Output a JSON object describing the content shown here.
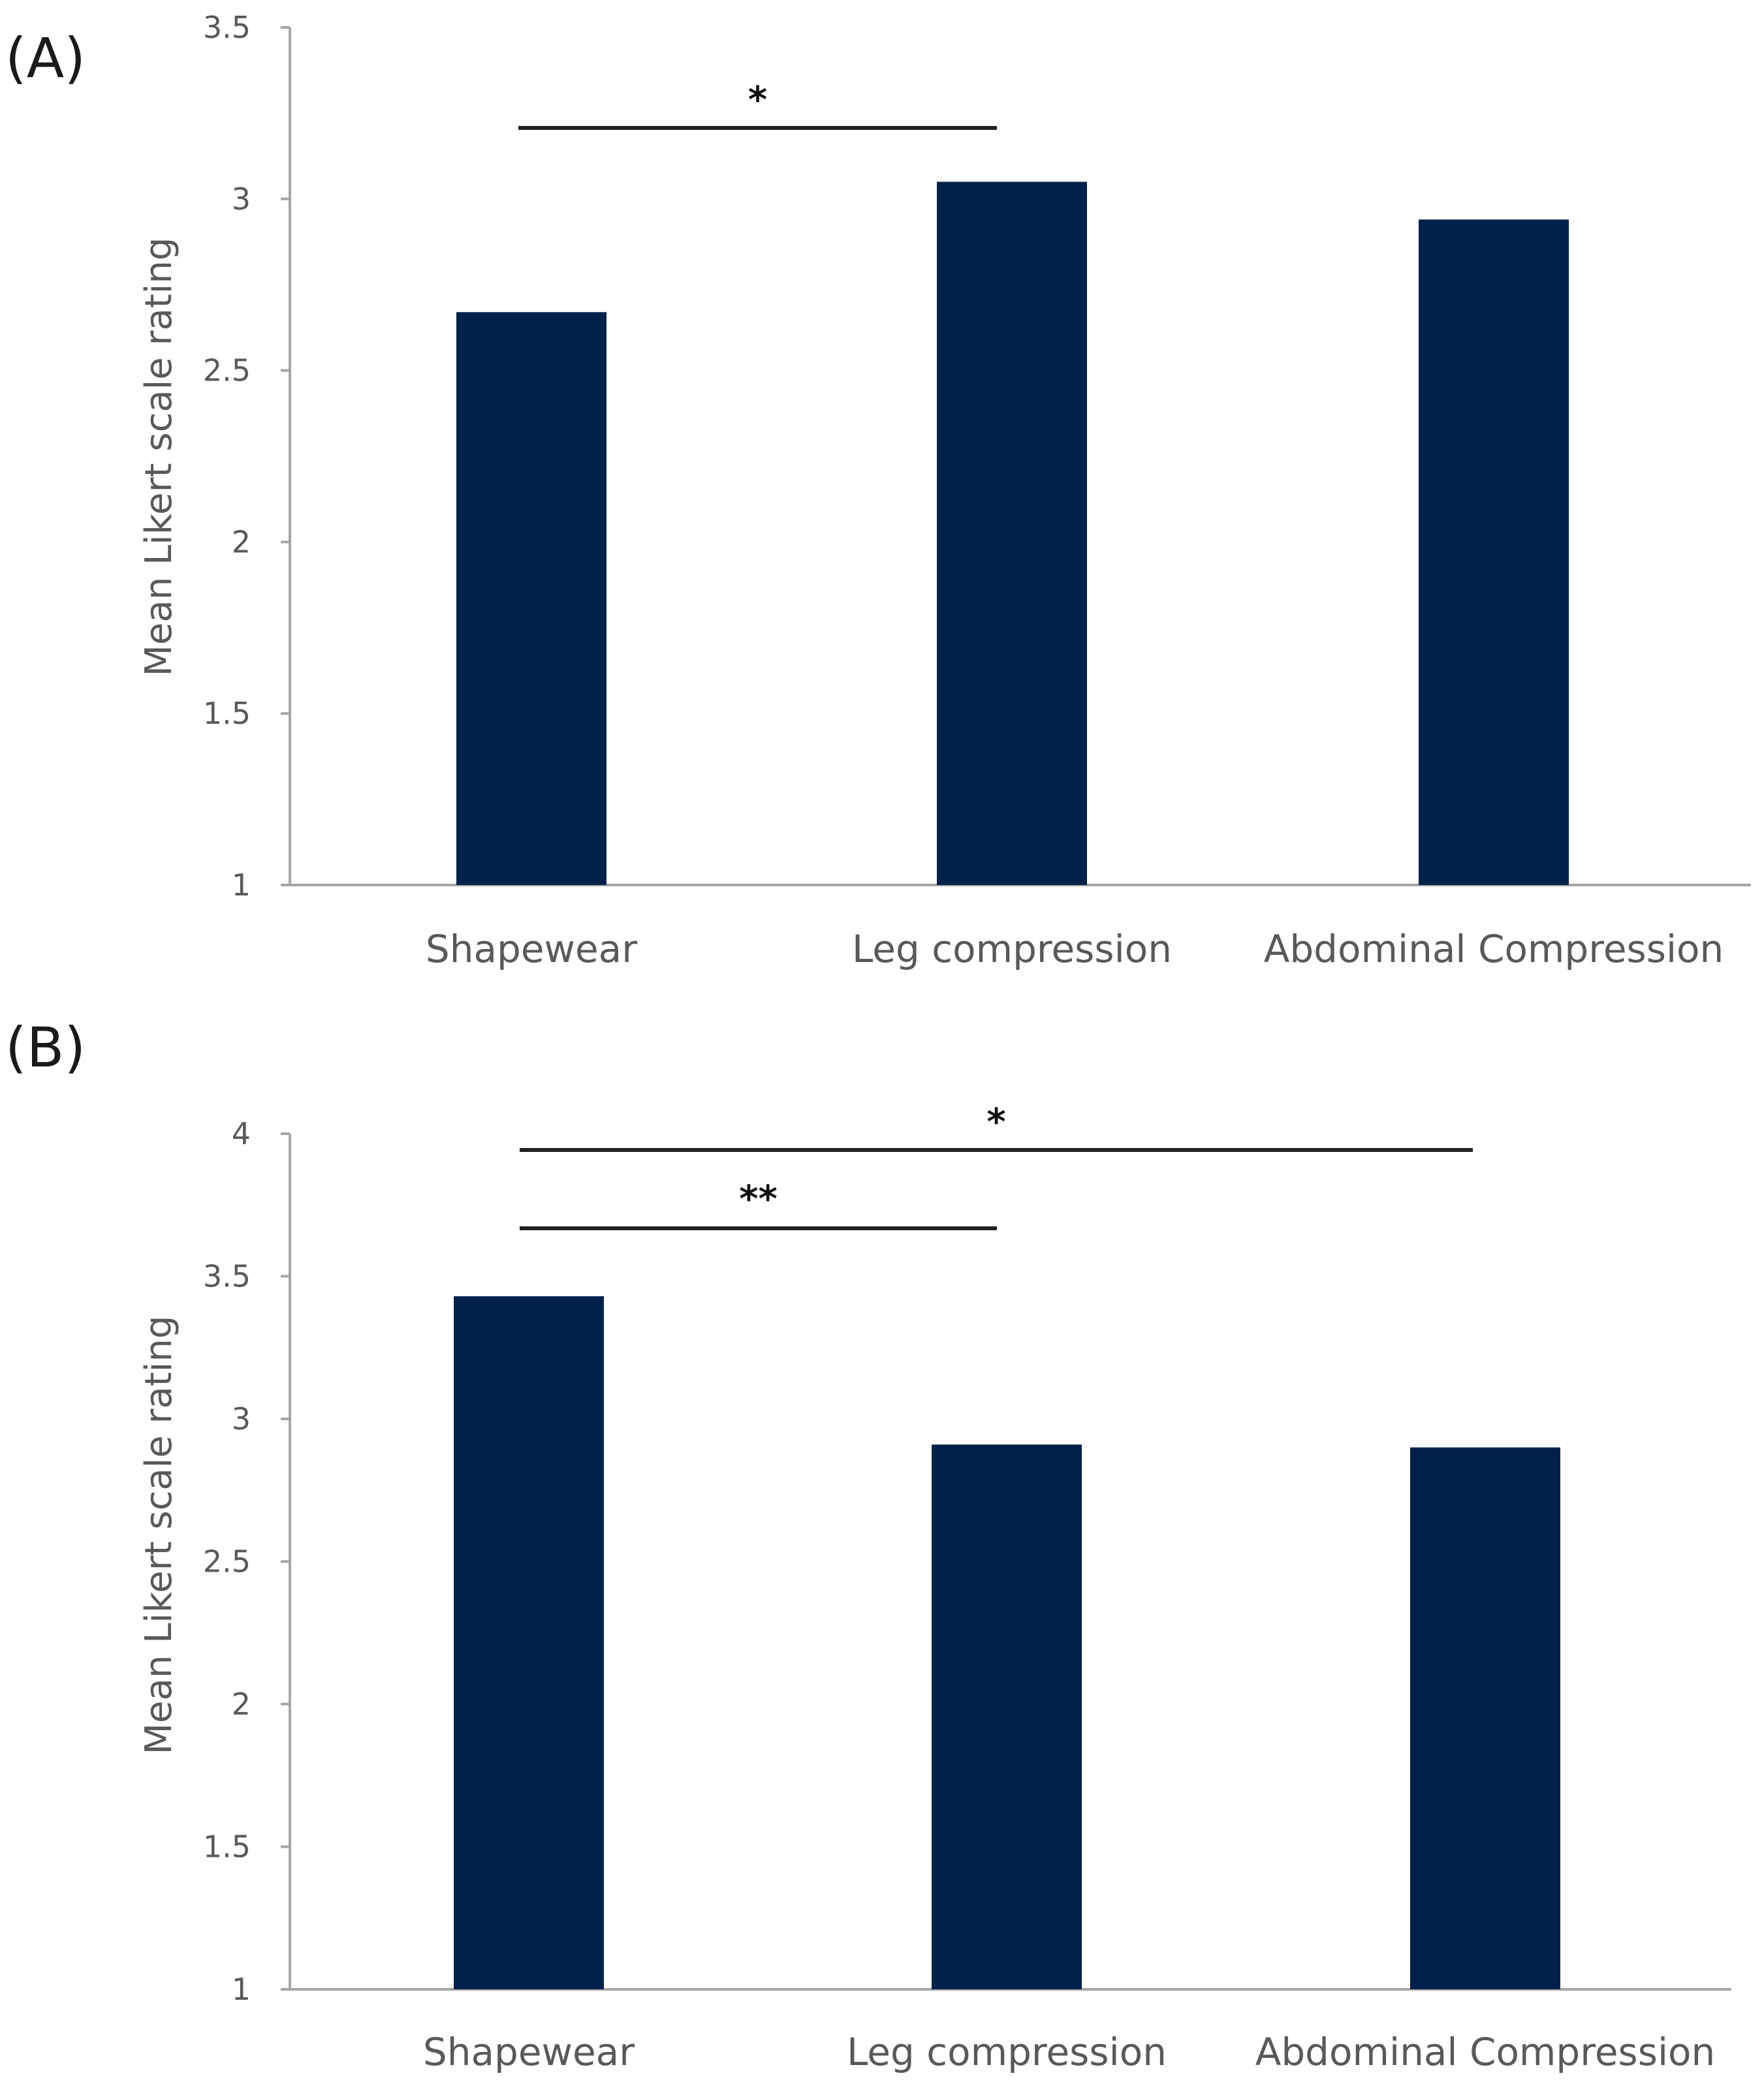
{
  "colors": {
    "bar": "#00224a",
    "axis": "#a6a6a6",
    "text": "#595959",
    "significance": "#222222"
  },
  "chart_data": [
    {
      "panel": "(A)",
      "type": "bar",
      "categories": [
        "Shapewear",
        "Leg compression",
        "Abdominal Compression"
      ],
      "values": [
        2.67,
        3.05,
        2.94
      ],
      "ylabel": "Mean Likert scale rating",
      "xlabel": "",
      "ylim": [
        1,
        3.5
      ],
      "yticks": [
        "1",
        "1.5",
        "2",
        "2.5",
        "3",
        "3.5"
      ],
      "grid": false,
      "significance": [
        {
          "from": 0,
          "to": 1,
          "label": "*",
          "level": 3.2
        }
      ]
    },
    {
      "panel": "(B)",
      "type": "bar",
      "categories": [
        "Shapewear",
        "Leg compression",
        "Abdominal Compression"
      ],
      "values": [
        3.43,
        2.91,
        2.9
      ],
      "ylabel": "Mean Likert scale rating",
      "xlabel": "",
      "ylim": [
        1,
        4
      ],
      "yticks": [
        "1",
        "1.5",
        "2",
        "2.5",
        "3",
        "3.5",
        "4"
      ],
      "grid": false,
      "significance": [
        {
          "from": 0,
          "to": 2,
          "label": "*",
          "level": 3.94
        },
        {
          "from": 0,
          "to": 1,
          "label": "**",
          "level": 3.65
        }
      ]
    }
  ]
}
